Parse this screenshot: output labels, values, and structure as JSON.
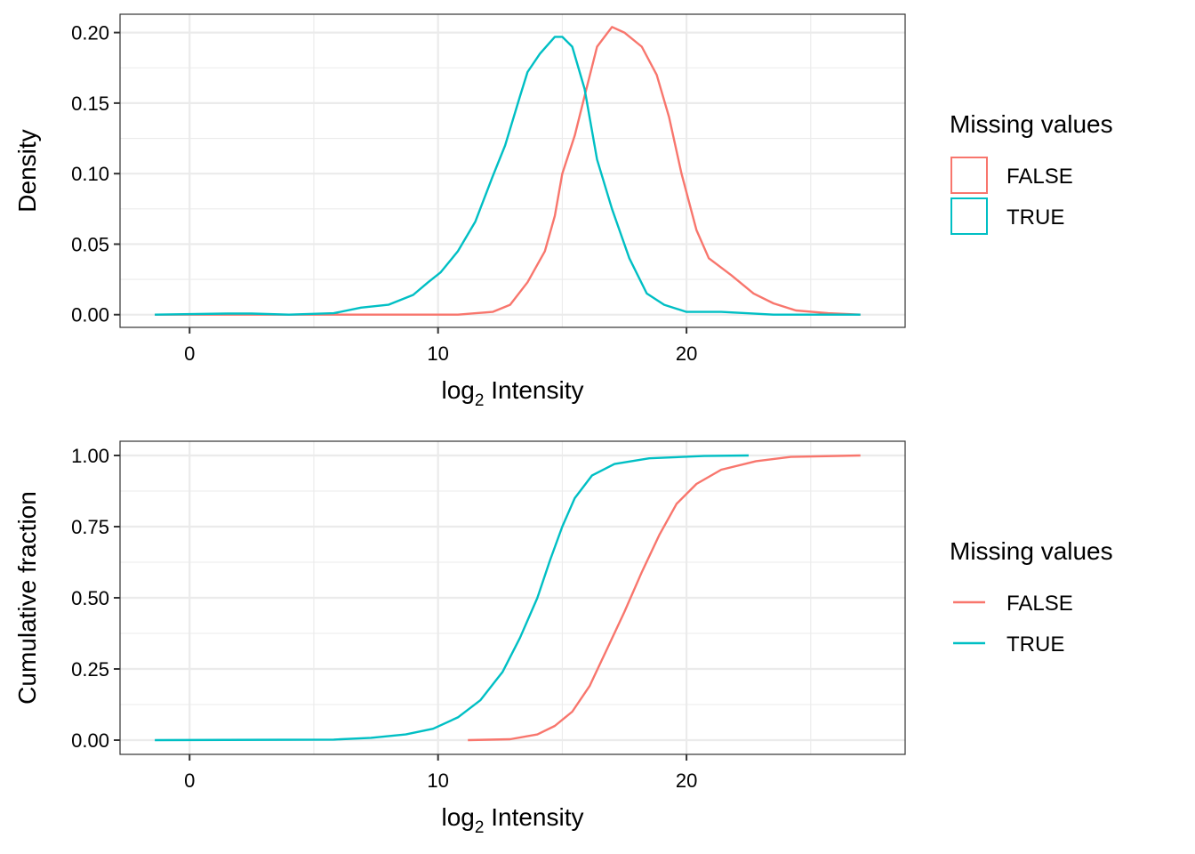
{
  "chart_data": [
    {
      "type": "line",
      "subtype": "density",
      "title": "",
      "xlabel": "log2 Intensity",
      "xlabel_main": "log",
      "xlabel_sub": "2",
      "xlabel_rest": " Intensity",
      "ylabel": "Density",
      "xlim": [
        -2.8,
        28.8
      ],
      "ylim": [
        -0.009,
        0.213
      ],
      "xticks": [
        0,
        10,
        20
      ],
      "xtick_labels": [
        "0",
        "10",
        "20"
      ],
      "xminor": [
        5,
        15,
        25
      ],
      "yticks": [
        0.0,
        0.05,
        0.1,
        0.15,
        0.2
      ],
      "ytick_labels": [
        "0.00",
        "0.05",
        "0.10",
        "0.15",
        "0.20"
      ],
      "yminor": [
        0.025,
        0.075,
        0.125,
        0.175
      ],
      "grid": true,
      "legend": {
        "title": "Missing values",
        "placement": "right",
        "key_style": "box",
        "entries": [
          {
            "label": "FALSE",
            "color": "#F8766D"
          },
          {
            "label": "TRUE",
            "color": "#00BFC4"
          }
        ]
      },
      "series": [
        {
          "name": "FALSE",
          "color": "#F8766D",
          "x": [
            -1.4,
            5,
            10.8,
            12.2,
            12.9,
            13.6,
            14.3,
            14.7,
            15.0,
            15.5,
            15.9,
            16.4,
            17.0,
            17.5,
            18.2,
            18.8,
            19.3,
            19.8,
            20.4,
            20.9,
            21.8,
            22.7,
            23.5,
            24.4,
            25.7,
            27.0
          ],
          "y": [
            0.0,
            0.0,
            0.0,
            0.002,
            0.007,
            0.023,
            0.045,
            0.07,
            0.1,
            0.127,
            0.155,
            0.19,
            0.204,
            0.2,
            0.19,
            0.17,
            0.14,
            0.1,
            0.06,
            0.04,
            0.028,
            0.015,
            0.008,
            0.003,
            0.001,
            0.0
          ]
        },
        {
          "name": "TRUE",
          "color": "#00BFC4",
          "x": [
            -1.4,
            1.5,
            2.5,
            4.0,
            5.8,
            6.9,
            8.0,
            9.0,
            9.6,
            10.1,
            10.8,
            11.5,
            12.2,
            12.7,
            13.3,
            13.6,
            14.1,
            14.7,
            15.0,
            15.4,
            15.9,
            16.4,
            17.0,
            17.7,
            18.4,
            19.1,
            20.0,
            21.4,
            23.5,
            27.0
          ],
          "y": [
            0.0,
            0.0008,
            0.0008,
            0.0,
            0.001,
            0.005,
            0.007,
            0.014,
            0.023,
            0.03,
            0.045,
            0.066,
            0.098,
            0.12,
            0.155,
            0.172,
            0.185,
            0.197,
            0.197,
            0.19,
            0.16,
            0.11,
            0.075,
            0.04,
            0.015,
            0.007,
            0.002,
            0.002,
            0.0,
            0.0
          ]
        }
      ]
    },
    {
      "type": "line",
      "subtype": "ecdf",
      "title": "",
      "xlabel": "log2 Intensity",
      "xlabel_main": "log",
      "xlabel_sub": "2",
      "xlabel_rest": " Intensity",
      "ylabel": "Cumulative fraction",
      "xlim": [
        -2.8,
        28.8
      ],
      "ylim": [
        -0.05,
        1.05
      ],
      "xticks": [
        0,
        10,
        20
      ],
      "xtick_labels": [
        "0",
        "10",
        "20"
      ],
      "xminor": [
        5,
        15,
        25
      ],
      "yticks": [
        0.0,
        0.25,
        0.5,
        0.75,
        1.0
      ],
      "ytick_labels": [
        "0.00",
        "0.25",
        "0.50",
        "0.75",
        "1.00"
      ],
      "yminor": [
        0.125,
        0.375,
        0.625,
        0.875
      ],
      "grid": true,
      "legend": {
        "title": "Missing values",
        "placement": "right",
        "key_style": "line",
        "entries": [
          {
            "label": "FALSE",
            "color": "#F8766D"
          },
          {
            "label": "TRUE",
            "color": "#00BFC4"
          }
        ]
      },
      "series": [
        {
          "name": "FALSE",
          "color": "#F8766D",
          "x": [
            11.2,
            12.9,
            14.0,
            14.7,
            15.4,
            16.1,
            16.8,
            17.5,
            18.2,
            18.9,
            19.6,
            20.4,
            21.4,
            22.8,
            24.2,
            27.0
          ],
          "y": [
            0.0,
            0.003,
            0.02,
            0.05,
            0.1,
            0.19,
            0.32,
            0.45,
            0.59,
            0.72,
            0.83,
            0.9,
            0.95,
            0.98,
            0.995,
            1.0
          ]
        },
        {
          "name": "TRUE",
          "color": "#00BFC4",
          "x": [
            -1.4,
            5.8,
            7.3,
            8.7,
            9.8,
            10.8,
            11.7,
            12.6,
            13.3,
            14.0,
            14.5,
            15.0,
            15.5,
            16.2,
            17.1,
            18.5,
            20.7,
            22.5
          ],
          "y": [
            0.0,
            0.002,
            0.008,
            0.02,
            0.04,
            0.08,
            0.14,
            0.24,
            0.36,
            0.5,
            0.63,
            0.75,
            0.85,
            0.93,
            0.97,
            0.99,
            0.998,
            1.0
          ]
        }
      ]
    }
  ]
}
